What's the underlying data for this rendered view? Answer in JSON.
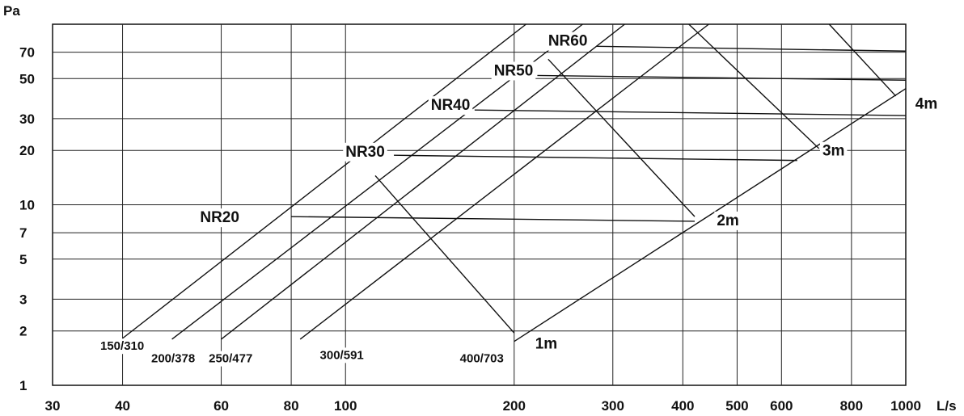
{
  "chart_data": {
    "type": "line",
    "title": "",
    "xlabel": "L/s",
    "ylabel": "Pa",
    "x_scale": "log",
    "y_scale": "log",
    "xlim": [
      30,
      1000
    ],
    "ylim": [
      1,
      100
    ],
    "grid": true,
    "x_ticks": [
      30,
      40,
      60,
      80,
      100,
      200,
      300,
      400,
      500,
      600,
      800,
      1000
    ],
    "x_tick_labels": [
      "30",
      "40",
      "60",
      "80",
      "100",
      "200",
      "300",
      "400",
      "500",
      "600",
      "800",
      "1000"
    ],
    "y_ticks": [
      1,
      2,
      3,
      5,
      7,
      10,
      20,
      30,
      50,
      70
    ],
    "y_tick_labels": [
      "1",
      "2",
      "3",
      "5",
      "7",
      "10",
      "20",
      "30",
      "50",
      "70"
    ],
    "series": [
      {
        "name": "150/310",
        "points": [
          [
            40,
            1.82
          ],
          [
            210,
            100
          ]
        ]
      },
      {
        "name": "200/378",
        "points": [
          [
            49,
            1.8
          ],
          [
            265,
            100
          ]
        ]
      },
      {
        "name": "250/477",
        "points": [
          [
            60,
            1.8
          ],
          [
            315,
            100
          ]
        ]
      },
      {
        "name": "300/591",
        "points": [
          [
            83,
            1.8
          ],
          [
            445,
            100
          ]
        ]
      },
      {
        "name": "400/703",
        "points": [
          [
            200,
            1.75
          ],
          [
            1000,
            44
          ]
        ]
      }
    ],
    "nr_curves": [
      {
        "name": "NR20",
        "points": [
          [
            80,
            8.6
          ],
          [
            420,
            8.1
          ]
        ]
      },
      {
        "name": "NR30",
        "points": [
          [
            122,
            18.8
          ],
          [
            640,
            17.6
          ]
        ]
      },
      {
        "name": "NR40",
        "points": [
          [
            170,
            33.5
          ],
          [
            1000,
            31.2
          ]
        ]
      },
      {
        "name": "NR50",
        "points": [
          [
            220,
            52
          ],
          [
            1000,
            49
          ]
        ]
      },
      {
        "name": "NR60",
        "points": [
          [
            280,
            75.5
          ],
          [
            1000,
            71
          ]
        ]
      }
    ],
    "throw_lines": [
      {
        "name": "1m",
        "points": [
          [
            113,
            14.5
          ],
          [
            200,
            1.95
          ]
        ]
      },
      {
        "name": "2m",
        "points": [
          [
            230,
            64
          ],
          [
            420,
            8.6
          ]
        ]
      },
      {
        "name": "3m",
        "points": [
          [
            410,
            100
          ],
          [
            700,
            20.5
          ]
        ]
      },
      {
        "name": "4m",
        "points": [
          [
            730,
            100
          ],
          [
            960,
            40
          ]
        ]
      }
    ],
    "labels": {
      "nr": [
        {
          "text": "NR20",
          "x": 55,
          "y": 8
        },
        {
          "text": "NR30",
          "x": 100,
          "y": 18.5
        },
        {
          "text": "NR40",
          "x": 142,
          "y": 33.5
        },
        {
          "text": "NR50",
          "x": 184,
          "y": 52
        },
        {
          "text": "NR60",
          "x": 230,
          "y": 76
        }
      ],
      "throw": [
        {
          "text": "1m",
          "x": 218,
          "y": 1.6
        },
        {
          "text": "2m",
          "x": 460,
          "y": 7.7
        },
        {
          "text": "3m",
          "x": 710,
          "y": 18.7
        },
        {
          "text": "4m",
          "x": 1040,
          "y": 34
        }
      ],
      "sizes": [
        {
          "text": "150/310",
          "x": 36.5,
          "y": 1.57
        },
        {
          "text": "200/378",
          "x": 45,
          "y": 1.34
        },
        {
          "text": "250/477",
          "x": 57,
          "y": 1.34
        },
        {
          "text": "300/591",
          "x": 90,
          "y": 1.4
        },
        {
          "text": "400/703",
          "x": 160,
          "y": 1.34
        }
      ]
    }
  }
}
